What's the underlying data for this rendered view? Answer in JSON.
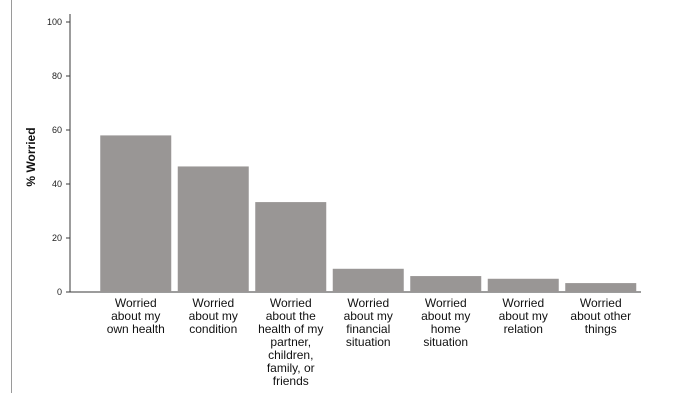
{
  "chart_data": {
    "type": "bar",
    "title": "",
    "xlabel": "",
    "ylabel": "% Worried",
    "ylim": [
      0,
      100
    ],
    "yticks": [
      0,
      20,
      40,
      60,
      80,
      100
    ],
    "grid": false,
    "legend": "none",
    "categories": [
      "Worried about my own health",
      "Worried about my condition",
      "Worried about the health of my partner, children, family, or friends",
      "Worried about my financial situation",
      "Worried about my home situation",
      "Worried about my relation",
      "Worried about other things"
    ],
    "category_lines": [
      [
        "Worried",
        "about my",
        "own health"
      ],
      [
        "Worried",
        "about my",
        "condition"
      ],
      [
        "Worried",
        "about the",
        "health of my",
        "partner,",
        "children,",
        "family, or",
        "friends"
      ],
      [
        "Worried",
        "about my",
        "financial",
        "situation"
      ],
      [
        "Worried",
        "about my",
        "home",
        "situation"
      ],
      [
        "Worried",
        "about my",
        "relation"
      ],
      [
        "Worried",
        "about other",
        "things"
      ]
    ],
    "values": [
      58,
      46.5,
      33.3,
      8.6,
      5.9,
      4.9,
      3.3
    ],
    "colors": {
      "bar": "#999695",
      "axis": "#3a3a3a",
      "text": "#111111"
    }
  }
}
